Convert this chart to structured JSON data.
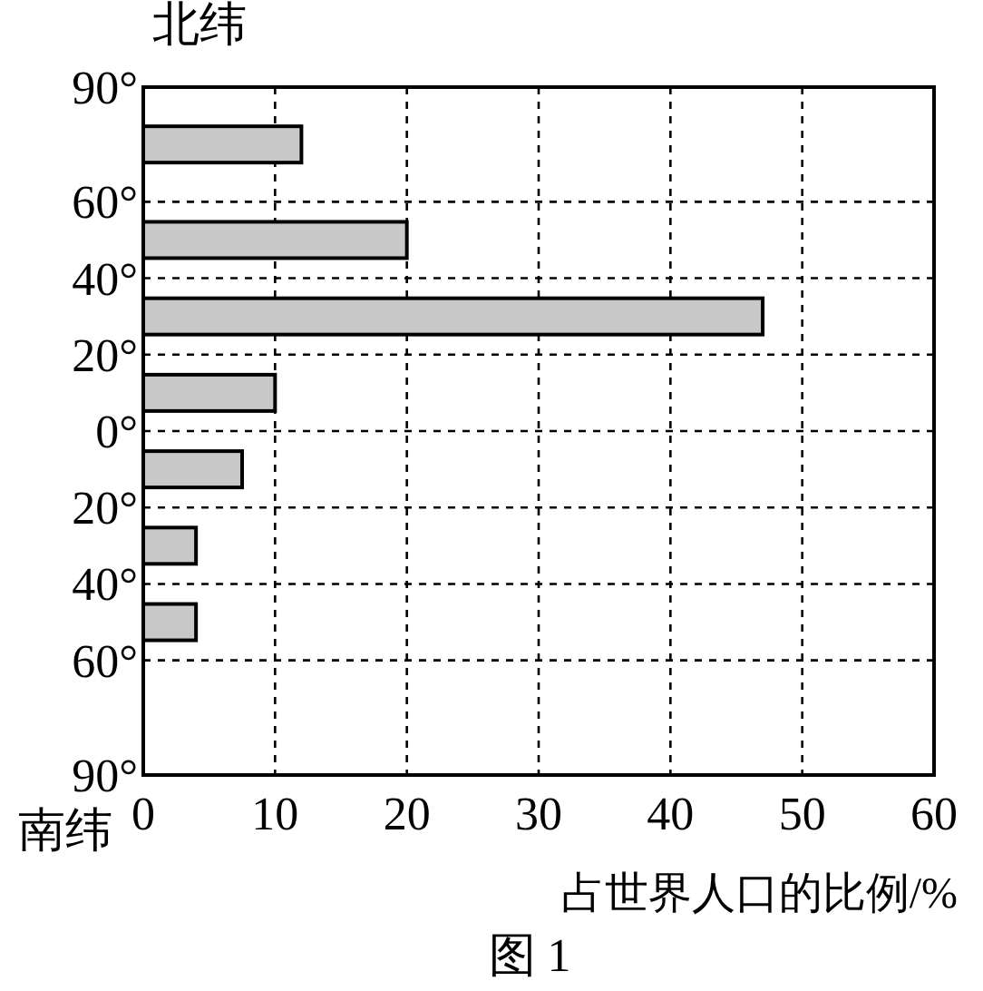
{
  "chart_data": {
    "type": "bar",
    "orientation": "horizontal",
    "xlabel": "占世界人口的比例/%",
    "annotations": [
      "北纬",
      "南纬",
      "图 1"
    ],
    "x": [
      75,
      50,
      30,
      10,
      -10,
      -30,
      -50
    ],
    "values": [
      12,
      20,
      47,
      10,
      7.5,
      4,
      4
    ],
    "color": "#c8c8c8",
    "xlim": [
      0,
      60
    ],
    "xticks": [
      0,
      10,
      20,
      30,
      40,
      50,
      60
    ],
    "ylim": [
      -90,
      90
    ],
    "yticks": [
      {
        "value": 90,
        "label": "90°"
      },
      {
        "value": 60,
        "label": "60°"
      },
      {
        "value": 40,
        "label": "40°"
      },
      {
        "value": 20,
        "label": "20°"
      },
      {
        "value": 0,
        "label": "0°"
      },
      {
        "value": -20,
        "label": "20°"
      },
      {
        "value": -40,
        "label": "40°"
      },
      {
        "value": -60,
        "label": "60°"
      },
      {
        "value": -90,
        "label": "90°"
      }
    ],
    "grid": true
  }
}
